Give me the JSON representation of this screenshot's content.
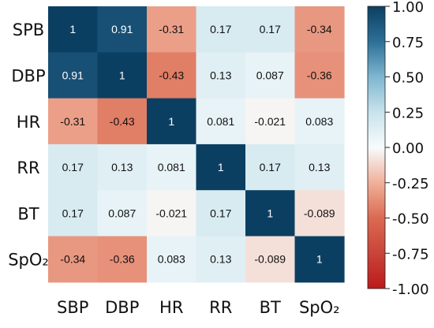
{
  "chart_data": {
    "type": "heatmap",
    "title": "",
    "row_labels": [
      "SPB",
      "DBP",
      "HR",
      "RR",
      "BT",
      "SpO₂"
    ],
    "col_labels": [
      "SBP",
      "DBP",
      "HR",
      "RR",
      "BT",
      "SpO₂"
    ],
    "values": [
      [
        1,
        0.91,
        -0.31,
        0.17,
        0.17,
        -0.34
      ],
      [
        0.91,
        1,
        -0.43,
        0.13,
        0.087,
        -0.36
      ],
      [
        -0.31,
        -0.43,
        1,
        0.081,
        -0.021,
        0.083
      ],
      [
        0.17,
        0.13,
        0.081,
        1,
        0.17,
        0.13
      ],
      [
        0.17,
        0.087,
        -0.021,
        0.17,
        1,
        -0.089
      ],
      [
        -0.34,
        -0.36,
        0.083,
        0.13,
        -0.089,
        1
      ]
    ],
    "annotations": [
      [
        "1",
        "0.91",
        "-0.31",
        "0.17",
        "0.17",
        "-0.34"
      ],
      [
        "0.91",
        "1",
        "-0.43",
        "0.13",
        "0.087",
        "-0.36"
      ],
      [
        "-0.31",
        "-0.43",
        "1",
        "0.081",
        "-0.021",
        "0.083"
      ],
      [
        "0.17",
        "0.13",
        "0.081",
        "1",
        "0.17",
        "0.13"
      ],
      [
        "0.17",
        "0.087",
        "-0.021",
        "0.17",
        "1",
        "-0.089"
      ],
      [
        "-0.34",
        "-0.36",
        "0.083",
        "0.13",
        "-0.089",
        "1"
      ]
    ],
    "colorbar": {
      "range": [
        -1.0,
        1.0
      ],
      "ticks": [
        1.0,
        0.75,
        0.5,
        0.25,
        0.0,
        -0.25,
        -0.5,
        -0.75,
        -1.0
      ],
      "tick_labels": [
        "1.00",
        "0.75",
        "0.50",
        "0.25",
        "0.00",
        "-0.25",
        "-0.50",
        "-0.75",
        "-1.00"
      ],
      "placement": "right"
    },
    "colormap": {
      "name": "diverging red-white-blue",
      "stops": [
        {
          "value": -1.0,
          "color": "#bb1a1a"
        },
        {
          "value": -0.75,
          "color": "#c9443a"
        },
        {
          "value": -0.5,
          "color": "#db6a52"
        },
        {
          "value": -0.25,
          "color": "#f0b09a"
        },
        {
          "value": 0.0,
          "color": "#f7fbfc"
        },
        {
          "value": 0.25,
          "color": "#c8e3ec"
        },
        {
          "value": 0.5,
          "color": "#7fb6d0"
        },
        {
          "value": 0.75,
          "color": "#2e6f97"
        },
        {
          "value": 1.0,
          "color": "#0b3f62"
        }
      ]
    }
  }
}
